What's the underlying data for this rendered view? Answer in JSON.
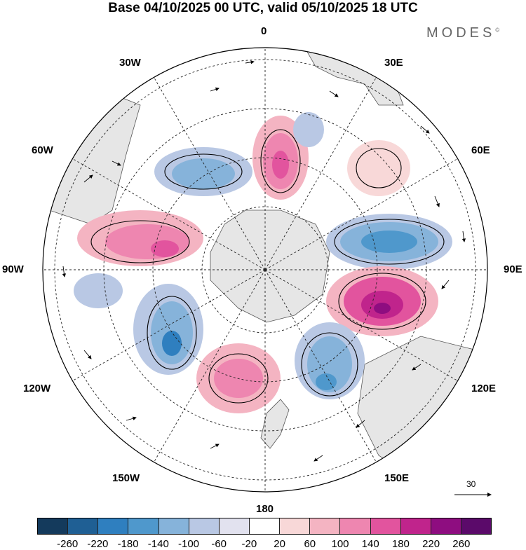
{
  "title": "Base 04/10/2025 00 UTC, valid 05/10/2025 18 UTC",
  "brand": "MODES",
  "brand_mark": "©",
  "longitude_labels": {
    "n0": "0",
    "e30": "30E",
    "e60": "60E",
    "e90": "90E",
    "e120": "120E",
    "e150": "150E",
    "s180": "180",
    "w150": "150W",
    "w120": "120W",
    "w90": "90W",
    "w60": "60W",
    "w30": "30W"
  },
  "reference_vector": {
    "label": "30"
  },
  "colorbar": {
    "ticks": [
      "-260",
      "-220",
      "-180",
      "-140",
      "-100",
      "-60",
      "-20",
      "20",
      "60",
      "100",
      "140",
      "180",
      "220",
      "260"
    ],
    "colors": [
      "#143a5c",
      "#1f5f94",
      "#2f7fbf",
      "#4f98cc",
      "#86b3da",
      "#b9c8e4",
      "#e2e2ef",
      "#ffffff",
      "#f8d8d8",
      "#f4b4c2",
      "#ee86b0",
      "#e2549e",
      "#c0248c",
      "#8e0d80",
      "#5b0a6a"
    ]
  },
  "colors": {
    "land": "#e6e6e6",
    "coast": "#555555",
    "grid": "#222222"
  }
}
